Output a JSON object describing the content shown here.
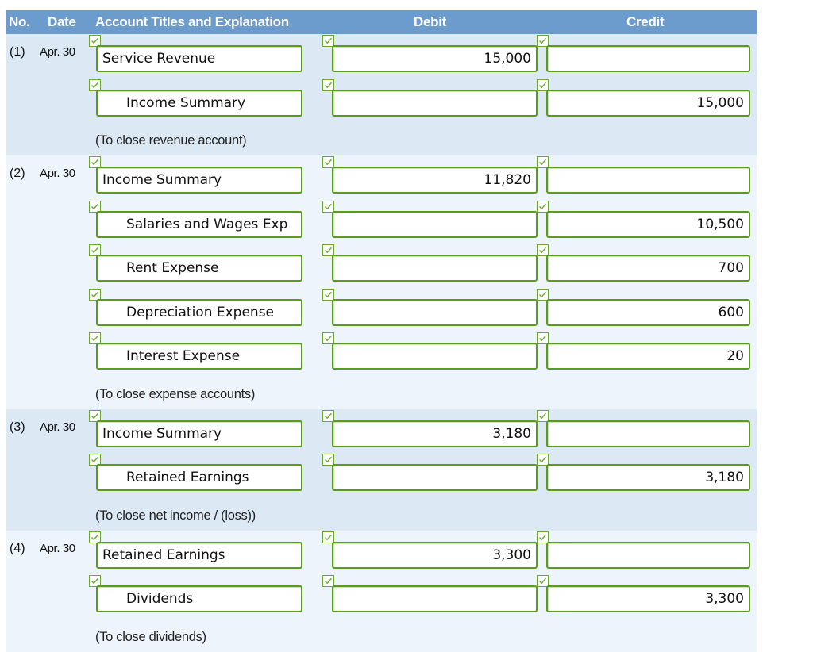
{
  "header": {
    "no": "No.",
    "date": "Date",
    "account": "Account Titles and Explanation",
    "debit": "Debit",
    "credit": "Credit"
  },
  "colors": {
    "header_bg": "#6c9ccd",
    "field_border": "#5b9a20",
    "check": "#6aa832",
    "row_blue": "#dde8f5",
    "row_light": "#eef4fb"
  },
  "entries": [
    {
      "no": "(1)",
      "date": "Apr. 30",
      "lines": [
        {
          "account": "Service Revenue",
          "debit": "15,000",
          "credit": ""
        },
        {
          "account": "Income Summary",
          "debit": "",
          "credit": "15,000"
        }
      ],
      "explanation": "(To close revenue account)"
    },
    {
      "no": "(2)",
      "date": "Apr. 30",
      "lines": [
        {
          "account": "Income Summary",
          "debit": "11,820",
          "credit": ""
        },
        {
          "account": "Salaries and Wages Exp",
          "debit": "",
          "credit": "10,500"
        },
        {
          "account": "Rent Expense",
          "debit": "",
          "credit": "700"
        },
        {
          "account": "Depreciation Expense",
          "debit": "",
          "credit": "600"
        },
        {
          "account": "Interest Expense",
          "debit": "",
          "credit": "20"
        }
      ],
      "explanation": "(To close expense accounts)"
    },
    {
      "no": "(3)",
      "date": "Apr. 30",
      "lines": [
        {
          "account": "Income Summary",
          "debit": "3,180",
          "credit": ""
        },
        {
          "account": "Retained Earnings",
          "debit": "",
          "credit": "3,180"
        }
      ],
      "explanation": "(To close net income / (loss))"
    },
    {
      "no": "(4)",
      "date": "Apr. 30",
      "lines": [
        {
          "account": "Retained Earnings",
          "debit": "3,300",
          "credit": ""
        },
        {
          "account": "Dividends",
          "debit": "",
          "credit": "3,300"
        }
      ],
      "explanation": "(To close dividends)"
    }
  ]
}
